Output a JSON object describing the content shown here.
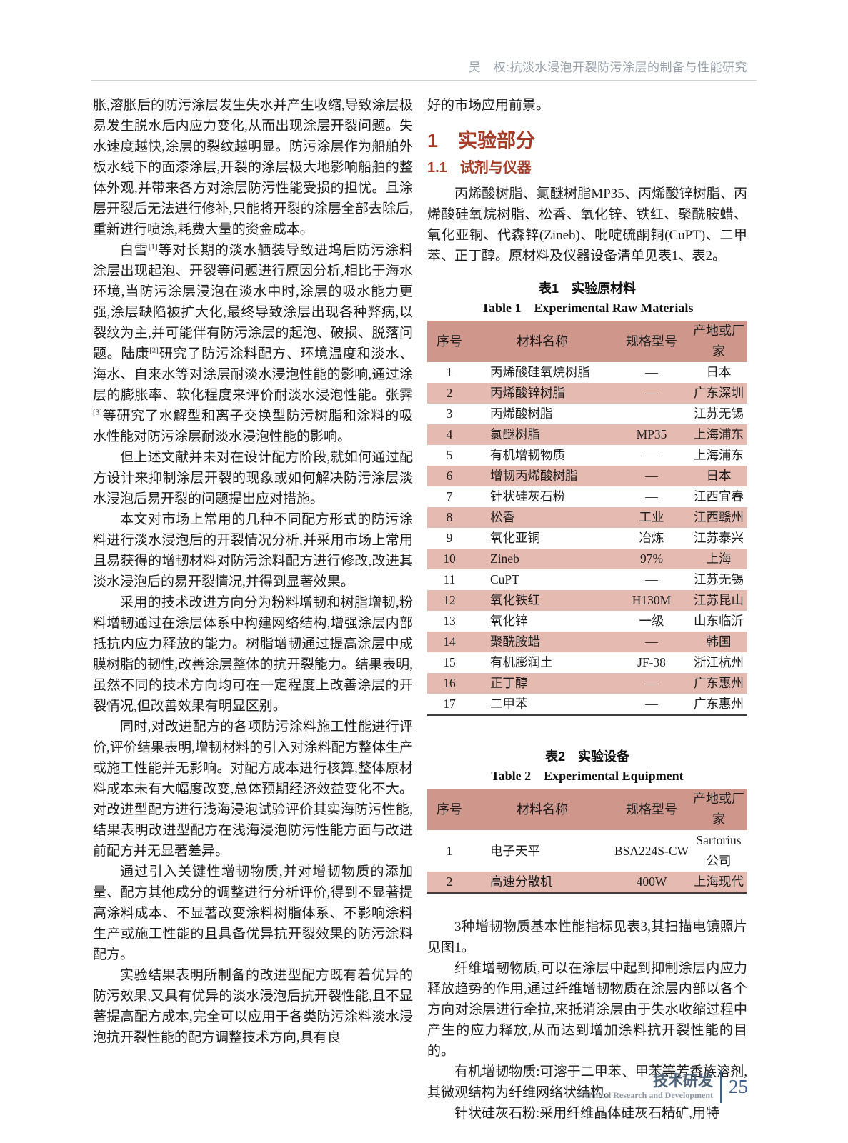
{
  "page": {
    "running_head": "吴　权:抗淡水浸泡开裂防污涂层的制备与性能研究",
    "footer": {
      "zh": "技术研发",
      "en": "Technical Research and Development",
      "page_number": "25"
    },
    "colors": {
      "heading_red": "#a63b28",
      "table_header_bg": "#cf978c",
      "table_alt_row_bg": "#e4bab1",
      "footer_blue": "#3c6191"
    }
  },
  "left_column": {
    "paragraphs": [
      {
        "indent": false,
        "runs": [
          {
            "t": "胀,溶胀后的防污涂层发生失水并产生收缩,导致涂层极易发生脱水后内应力变化,从而出现涂层开裂问题。失水速度越快,涂层的裂纹越明显。防污涂层作为船舶外板水线下的面漆涂层,开裂的涂层极大地影响船舶的整体外观,并带来各方对涂层防污性能受损的担忧。且涂层开裂后无法进行修补,只能将开裂的涂层全部去除后,重新进行喷涂,耗费大量的资金成本。"
          }
        ]
      },
      {
        "indent": true,
        "runs": [
          {
            "t": "白雪"
          },
          {
            "t": "[1]",
            "sup": true
          },
          {
            "t": "等对长期的淡水舾装导致进坞后防污涂料涂层出现起泡、开裂等问题进行原因分析,相比于海水环境,当防污涂层浸泡在淡水中时,涂层的吸水能力更强,涂层缺陷被扩大化,最终导致涂层出现各种弊病,以裂纹为主,并可能伴有防污涂层的起泡、破损、脱落问题。陆康"
          },
          {
            "t": "[2]",
            "sup": true
          },
          {
            "t": "研究了防污涂料配方、环境温度和淡水、海水、自来水等对涂层耐淡水浸泡性能的影响,通过涂层的膨胀率、软化程度来评价耐淡水浸泡性能。张霁"
          },
          {
            "t": "[3]",
            "sup": true
          },
          {
            "t": "等研究了水解型和离子交换型防污树脂和涂料的吸水性能对防污涂层耐淡水浸泡性能的影响。"
          }
        ]
      },
      {
        "indent": true,
        "runs": [
          {
            "t": "但上述文献并未对在设计配方阶段,就如何通过配方设计来抑制涂层开裂的现象或如何解决防污涂层淡水浸泡后易开裂的问题提出应对措施。"
          }
        ]
      },
      {
        "indent": true,
        "runs": [
          {
            "t": "本文对市场上常用的几种不同配方形式的防污涂料进行淡水浸泡后的开裂情况分析,并采用市场上常用且易获得的增韧材料对防污涂料配方进行修改,改进其淡水浸泡后的易开裂情况,并得到显著效果。"
          }
        ]
      },
      {
        "indent": true,
        "runs": [
          {
            "t": "采用的技术改进方向分为粉料增韧和树脂增韧,粉料增韧通过在涂层体系中构建网络结构,增强涂层内部抵抗内应力释放的能力。树脂增韧通过提高涂层中成膜树脂的韧性,改善涂层整体的抗开裂能力。结果表明,虽然不同的技术方向均可在一定程度上改善涂层的开裂情况,但改善效果有明显区别。"
          }
        ]
      },
      {
        "indent": true,
        "runs": [
          {
            "t": "同时,对改进配方的各项防污涂料施工性能进行评价,评价结果表明,增韧材料的引入对涂料配方整体生产或施工性能并无影响。对配方成本进行核算,整体原材料成本未有大幅度改变,总体预期经济效益变化不大。对改进型配方进行浅海浸泡试验评价其实海防污性能,结果表明改进型配方在浅海浸泡防污性能方面与改进前配方并无显著差异。"
          }
        ]
      },
      {
        "indent": true,
        "runs": [
          {
            "t": "通过引入关键性增韧物质,并对增韧物质的添加量、配方其他成分的调整进行分析评价,得到不显著提高涂料成本、不显著改变涂料树脂体系、不影响涂料生产或施工性能的且具备优异抗开裂效果的防污涂料配方。"
          }
        ]
      },
      {
        "indent": true,
        "runs": [
          {
            "t": "实验结果表明所制备的改进型配方既有着优异的防污效果,又具有优异的淡水浸泡后抗开裂性能,且不显著提高配方成本,完全可以应用于各类防污涂料淡水浸泡抗开裂性能的配方调整技术方向,具有良"
          }
        ]
      }
    ]
  },
  "right_column": {
    "lead_paragraphs": [
      {
        "indent": false,
        "runs": [
          {
            "t": "好的市场应用前景。"
          }
        ]
      }
    ],
    "section_heading": {
      "num": "1",
      "title": "实验部分"
    },
    "subsection_heading": {
      "num": "1.1",
      "title": "试剂与仪器"
    },
    "intro_paragraphs": [
      {
        "indent": true,
        "runs": [
          {
            "t": "丙烯酸树脂、氯醚树脂MP35、丙烯酸锌树脂、丙烯酸硅氧烷树脂、松香、氧化锌、铁红、聚酰胺蜡、氧化亚铜、代森锌(Zineb)、吡啶硫酮铜(CuPT)、二甲苯、正丁醇。原材料及仪器设备清单见表1、表2。"
          }
        ]
      }
    ],
    "table1": {
      "caption_zh": "表1　实验原材料",
      "caption_en": "Table 1  Experimental Raw Materials",
      "headers": [
        "序号",
        "材料名称",
        "规格型号",
        "产地或厂家"
      ],
      "rows": [
        [
          "1",
          "丙烯酸硅氧烷树脂",
          "—",
          "日本"
        ],
        [
          "2",
          "丙烯酸锌树脂",
          "—",
          "广东深圳"
        ],
        [
          "3",
          "丙烯酸树脂",
          "",
          "江苏无锡"
        ],
        [
          "4",
          "氯醚树脂",
          "MP35",
          "上海浦东"
        ],
        [
          "5",
          "有机增韧物质",
          "—",
          "上海浦东"
        ],
        [
          "6",
          "增韧丙烯酸树脂",
          "—",
          "日本"
        ],
        [
          "7",
          "针状硅灰石粉",
          "—",
          "江西宜春"
        ],
        [
          "8",
          "松香",
          "工业",
          "江西赣州"
        ],
        [
          "9",
          "氧化亚铜",
          "冶炼",
          "江苏泰兴"
        ],
        [
          "10",
          "Zineb",
          "97%",
          "上海"
        ],
        [
          "11",
          "CuPT",
          "—",
          "江苏无锡"
        ],
        [
          "12",
          "氧化铁红",
          "H130M",
          "江苏昆山"
        ],
        [
          "13",
          "氧化锌",
          "一级",
          "山东临沂"
        ],
        [
          "14",
          "聚酰胺蜡",
          "—",
          "韩国"
        ],
        [
          "15",
          "有机膨润土",
          "JF-38",
          "浙江杭州"
        ],
        [
          "16",
          "正丁醇",
          "—",
          "广东惠州"
        ],
        [
          "17",
          "二甲苯",
          "—",
          "广东惠州"
        ]
      ]
    },
    "table2": {
      "caption_zh": "表2　实验设备",
      "caption_en": "Table 2  Experimental Equipment",
      "headers": [
        "序号",
        "材料名称",
        "规格型号",
        "产地或厂家"
      ],
      "rows": [
        [
          "1",
          "电子天平",
          "BSA224S-CW",
          "Sartorius公司"
        ],
        [
          "2",
          "高速分散机",
          "400W",
          "上海现代"
        ]
      ]
    },
    "after_paragraphs": [
      {
        "indent": true,
        "runs": [
          {
            "t": "3种增韧物质基本性能指标见表3,其扫描电镜照片见图1。"
          }
        ]
      },
      {
        "indent": true,
        "runs": [
          {
            "t": "纤维增韧物质,可以在涂层中起到抑制涂层内应力释放趋势的作用,通过纤维增韧物质在涂层内部以各个方向对涂层进行牵拉,来抵消涂层由于失水收缩过程中产生的应力释放,从而达到增加涂料抗开裂性能的目的。"
          }
        ]
      },
      {
        "indent": true,
        "runs": [
          {
            "t": "有机增韧物质:可溶于二甲苯、甲苯等芳香族溶剂,其微观结构为纤维网络状结构。"
          }
        ]
      },
      {
        "indent": true,
        "runs": [
          {
            "t": "针状硅灰石粉:采用纤维晶体硅灰石精矿,用特"
          }
        ]
      }
    ]
  }
}
